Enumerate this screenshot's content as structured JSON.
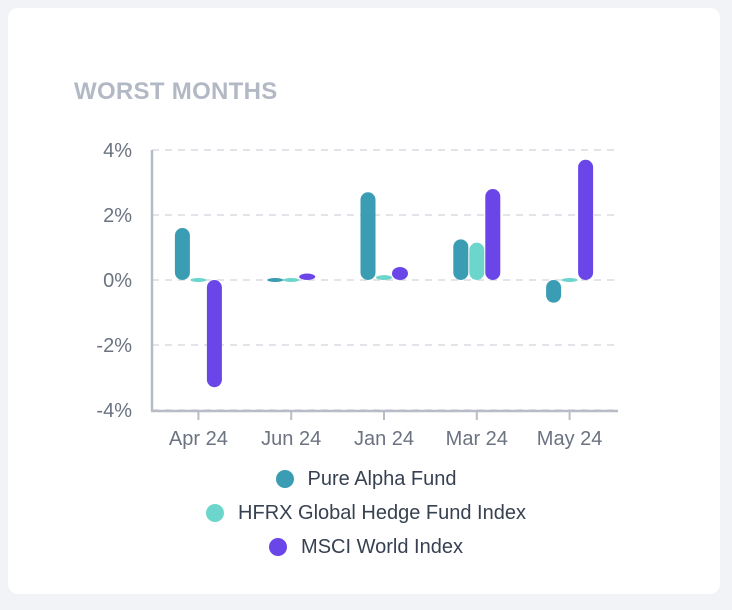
{
  "card": {
    "title": "WORST MONTHS"
  },
  "chart_data": {
    "type": "bar",
    "title": "WORST MONTHS",
    "xlabel": "",
    "ylabel": "",
    "categories": [
      "Apr 24",
      "Jun 24",
      "Jan 24",
      "Mar 24",
      "May 24"
    ],
    "ylim": [
      -4,
      4
    ],
    "yticks": [
      4,
      2,
      0,
      -2,
      -4
    ],
    "ytick_labels": [
      "4%",
      "2%",
      "0%",
      "-2%",
      "-4%"
    ],
    "grid": "horizontal-dashed",
    "legend": "bottom",
    "series": [
      {
        "name": "Pure Alpha Fund",
        "color": "#3a9db3",
        "values": [
          1.6,
          0.02,
          2.7,
          1.25,
          -0.7
        ]
      },
      {
        "name": "HFRX Global Hedge Fund Index",
        "color": "#6dd6cc",
        "values": [
          -0.05,
          -0.05,
          0.15,
          1.15,
          0.0
        ]
      },
      {
        "name": "MSCI World Index",
        "color": "#6a46e8",
        "values": [
          -3.3,
          0.2,
          0.4,
          2.8,
          3.7
        ]
      }
    ]
  }
}
